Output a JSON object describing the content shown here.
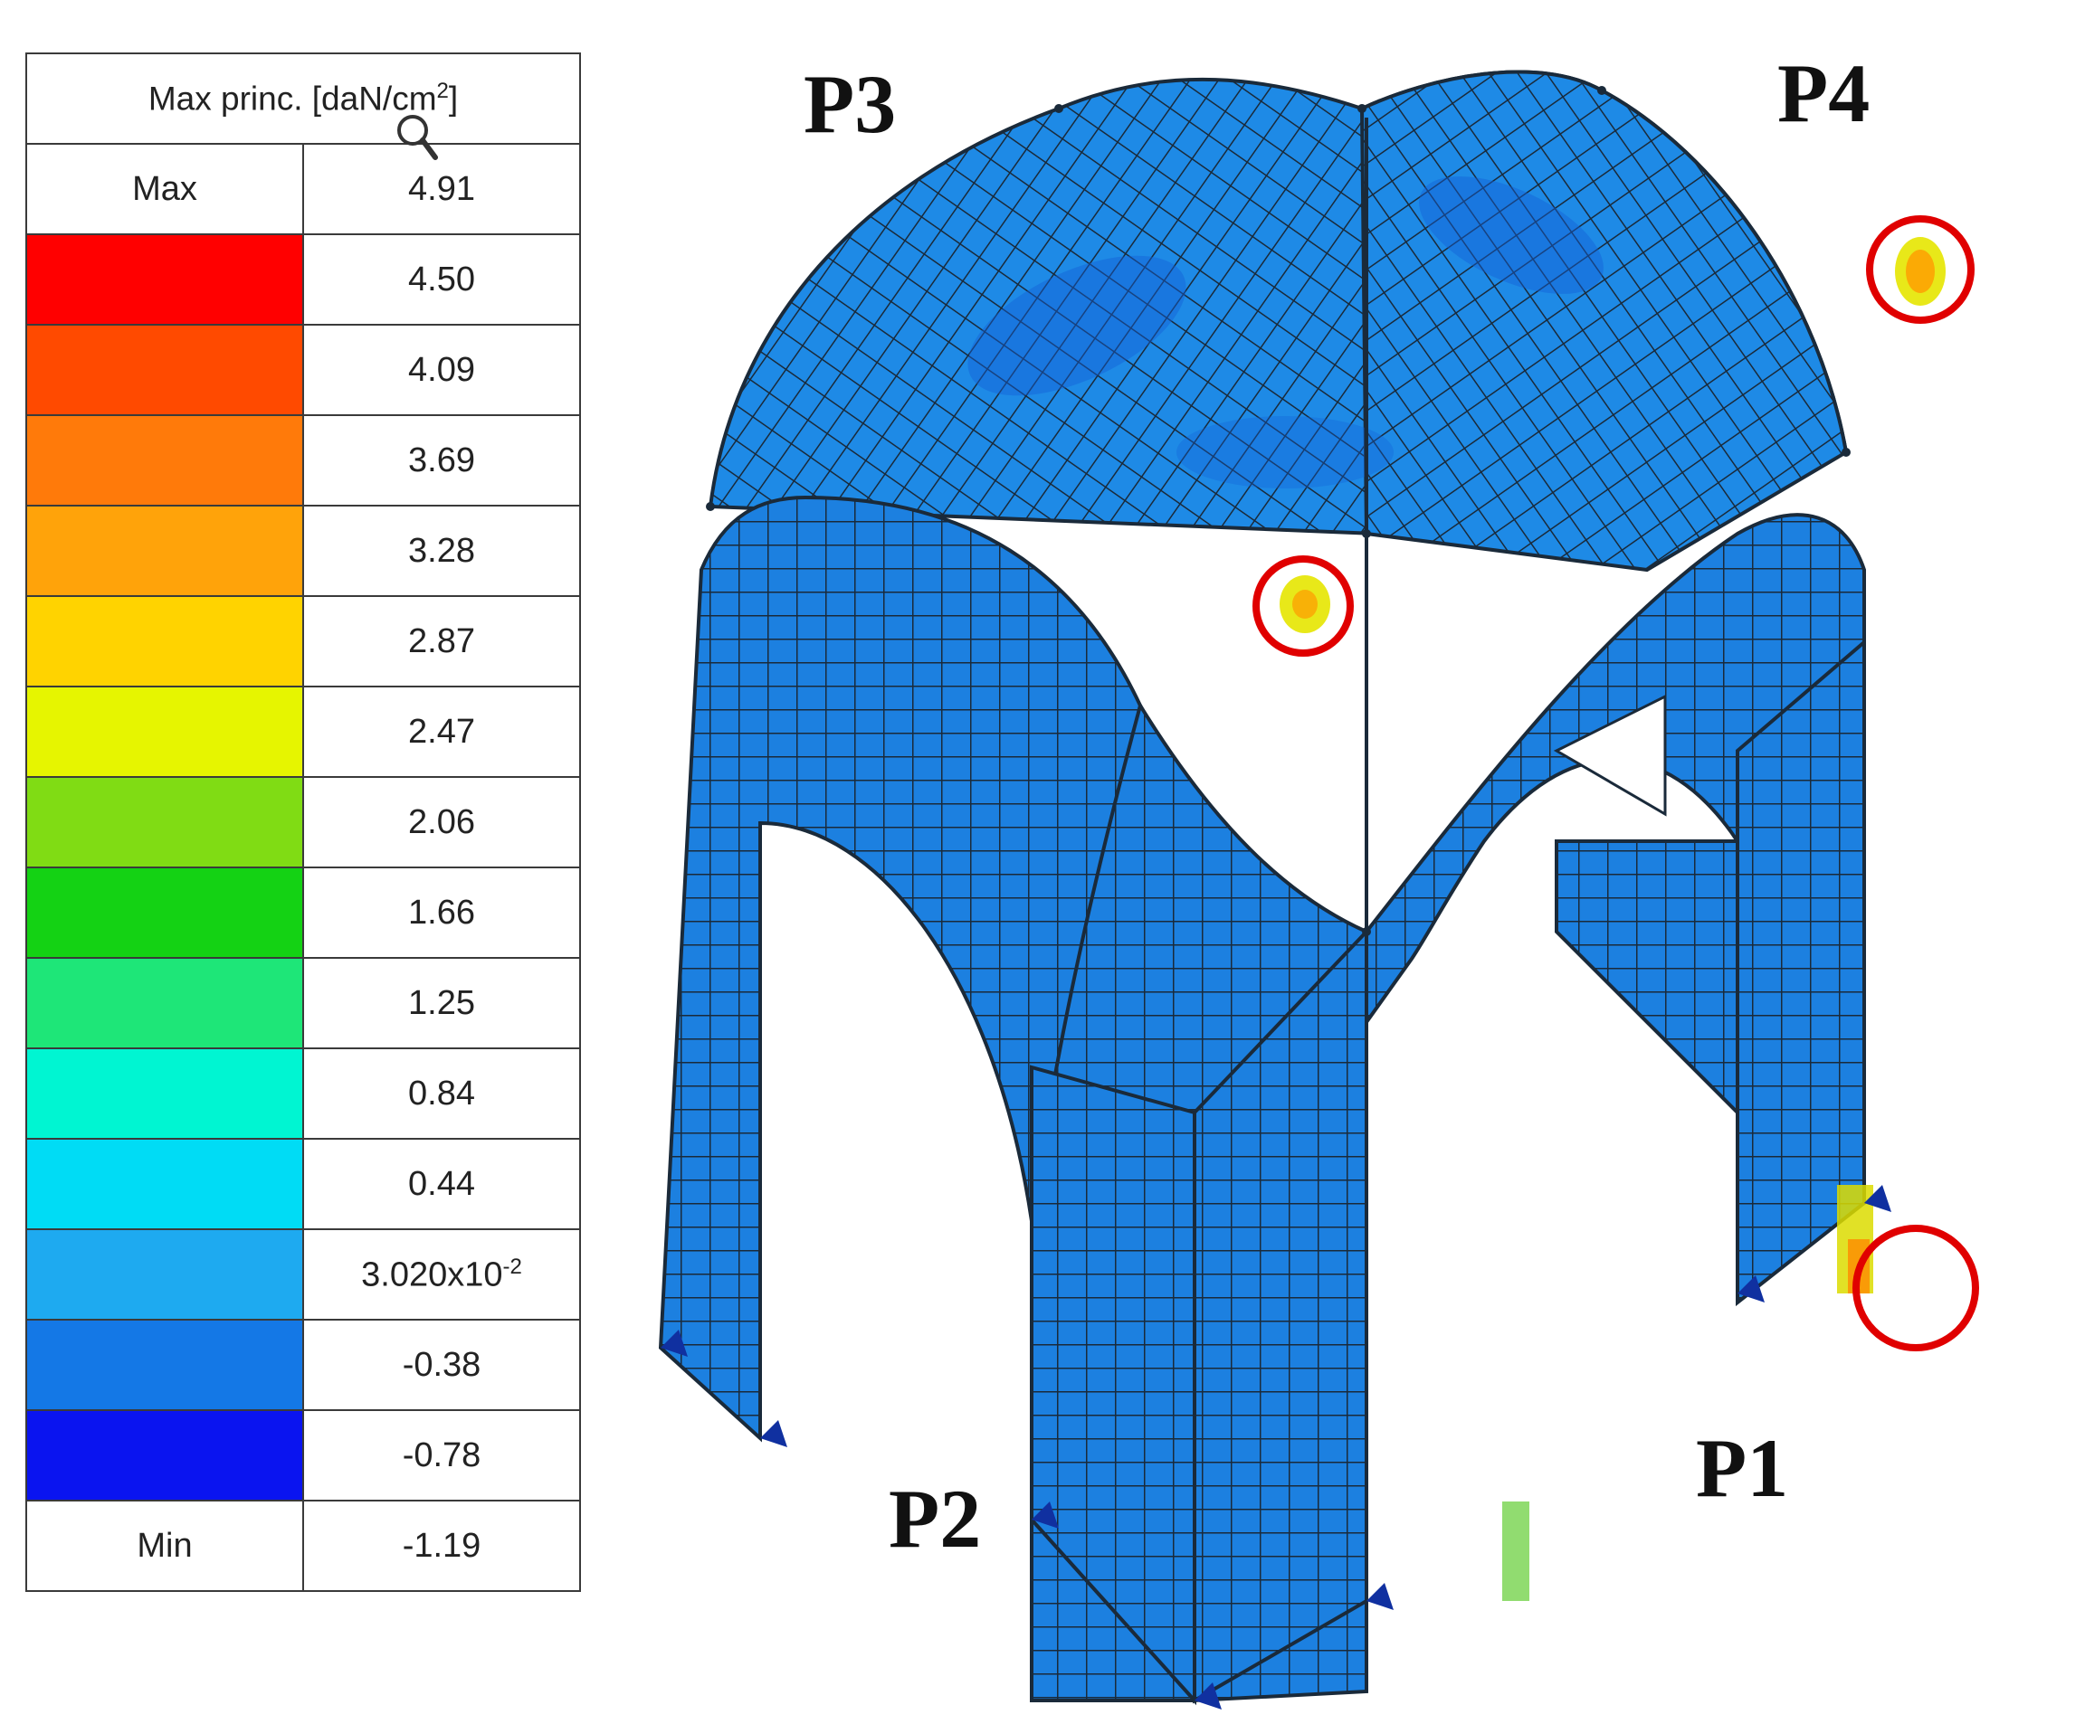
{
  "legend": {
    "title": "Max princ. [daN/cm",
    "title_sup": "2",
    "title_end": "]",
    "max_label": "Max",
    "max_value": "4.91",
    "min_label": "Min",
    "min_value": "-1.19",
    "bands": [
      {
        "value": "4.50",
        "color": "#ff0000"
      },
      {
        "value": "4.09",
        "color": "#ff4a00"
      },
      {
        "value": "3.69",
        "color": "#ff7a0a"
      },
      {
        "value": "3.28",
        "color": "#ffa30a"
      },
      {
        "value": "2.87",
        "color": "#ffd300"
      },
      {
        "value": "2.47",
        "color": "#e6f500"
      },
      {
        "value": "2.06",
        "color": "#80dc14"
      },
      {
        "value": "1.66",
        "color": "#14d214"
      },
      {
        "value": "1.25",
        "color": "#1ee678"
      },
      {
        "value": "0.84",
        "color": "#00f5d2"
      },
      {
        "value": "0.44",
        "color": "#00dcf5"
      },
      {
        "value": "3.020x10",
        "value_sup": "-2",
        "color": "#1eaaf0"
      },
      {
        "value": "-0.38",
        "color": "#1478e6"
      },
      {
        "value": "-0.78",
        "color": "#0a14f0"
      }
    ]
  },
  "labels": {
    "p1": "P1",
    "p2": "P2",
    "p3": "P3",
    "p4": "P4"
  },
  "colors": {
    "mesh_surface": "#1e8ae6",
    "mesh_dark": "#1565d0",
    "mesh_line": "#1a2a3a",
    "hotspot": "#e6e600",
    "highlight_circle": "#e00000",
    "support": "#1030a0"
  },
  "icons": [
    "zoom-icon"
  ]
}
